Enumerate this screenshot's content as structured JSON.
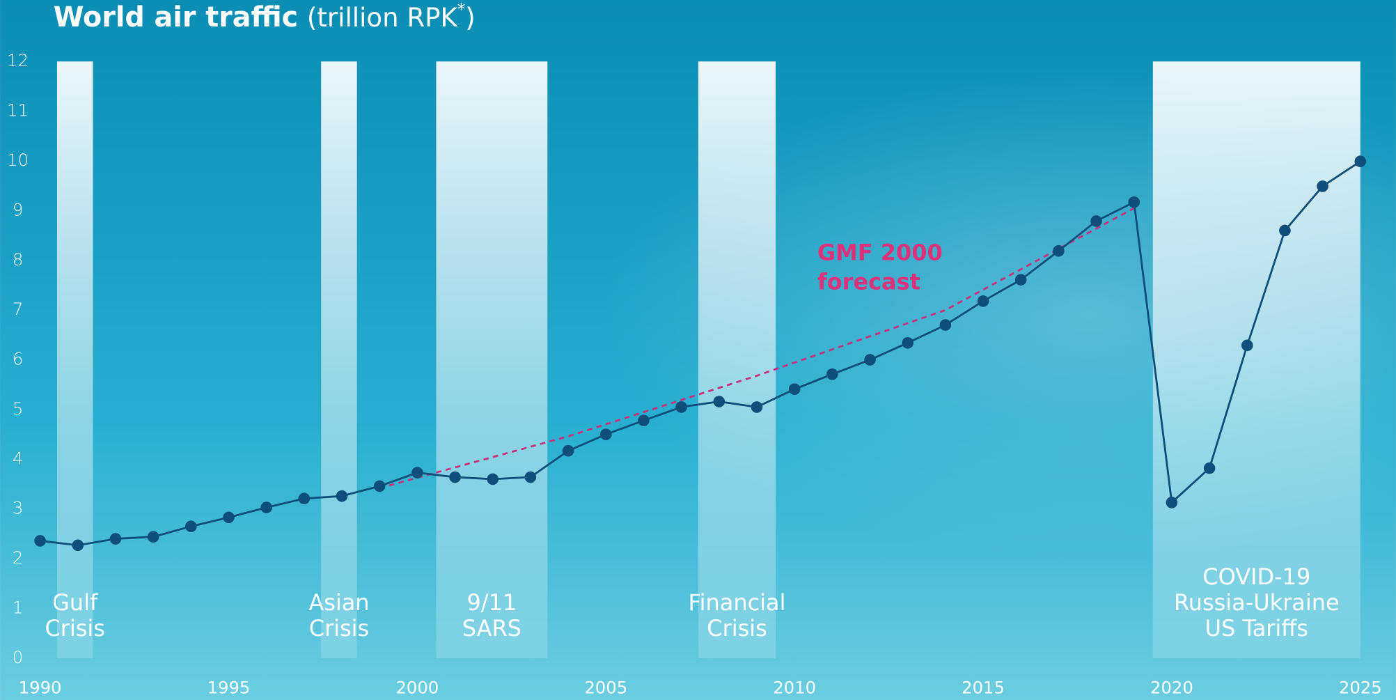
{
  "chart_data": {
    "type": "line",
    "title": "World air traffic",
    "unit": "(trillion RPK",
    "unit_sup": "*",
    "unit_close": ")",
    "xlim": [
      1990,
      2025
    ],
    "xticks": [
      1990,
      1995,
      2000,
      2005,
      2010,
      2015,
      2020,
      2025
    ],
    "ylim": [
      0,
      12
    ],
    "yticks": [
      0,
      1,
      2,
      3,
      4,
      5,
      6,
      7,
      8,
      9,
      10,
      11,
      12
    ],
    "bands": [
      {
        "start": 1990.45,
        "end": 1991.4,
        "label": [
          "Gulf",
          "Crisis"
        ]
      },
      {
        "start": 1997.45,
        "end": 1998.4,
        "label": [
          "Asian",
          "Crisis"
        ]
      },
      {
        "start": 2000.5,
        "end": 2003.45,
        "label": [
          "9/11",
          "SARS"
        ]
      },
      {
        "start": 2007.45,
        "end": 2009.5,
        "label": [
          "Financial",
          "Crisis"
        ]
      },
      {
        "start": 2019.5,
        "end": 2025,
        "label": [
          "COVID-19",
          "Russia-Ukraine",
          "US Tariffs"
        ]
      }
    ],
    "series": [
      {
        "color": "#0d4f7a",
        "x": [
          1990,
          1991,
          1992,
          1993,
          1994,
          1995,
          1996,
          1997,
          1998,
          1999,
          2000,
          2001,
          2002,
          2003,
          2004,
          2005,
          2006,
          2007,
          2008,
          2009,
          2010,
          2011,
          2012,
          2013,
          2014,
          2015,
          2016,
          2017,
          2018,
          2019,
          2020,
          2021,
          2022,
          2023,
          2024,
          2025
        ],
        "values": [
          2.36,
          2.27,
          2.4,
          2.44,
          2.65,
          2.83,
          3.03,
          3.21,
          3.26,
          3.46,
          3.73,
          3.64,
          3.6,
          3.64,
          4.17,
          4.5,
          4.78,
          5.05,
          5.16,
          5.05,
          5.41,
          5.71,
          6.0,
          6.34,
          6.7,
          7.18,
          7.61,
          8.19,
          8.79,
          9.17,
          3.13,
          3.82,
          6.29,
          8.6,
          9.49,
          9.99
        ]
      },
      {
        "color": "#c8307a",
        "dashed": true,
        "label": [
          "GMF 2000",
          "forecast"
        ],
        "x": [
          1999,
          2004,
          2009,
          2014,
          2019
        ],
        "values": [
          3.42,
          4.46,
          5.68,
          7.0,
          9.05
        ]
      }
    ]
  }
}
